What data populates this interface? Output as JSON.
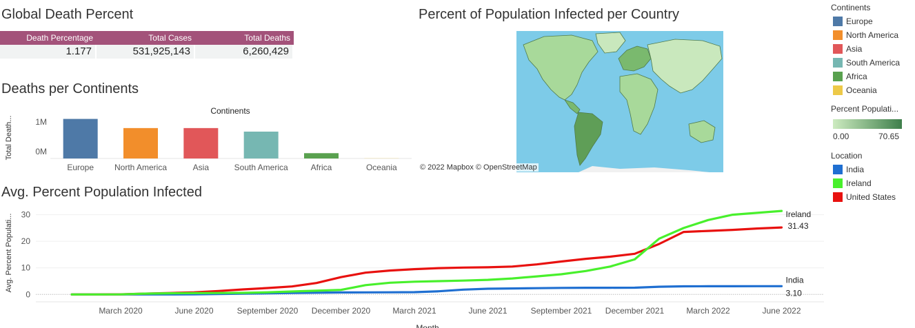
{
  "dashboard": {
    "global_title": "Global Death Percent",
    "deaths_title": "Deaths per Continents",
    "map_title": "Percent of Population Infected per Country",
    "line_title": "Avg. Percent Population Infected"
  },
  "kpi": {
    "headers": [
      "Death Percentage",
      "Total Cases",
      "Total Deaths"
    ],
    "values": [
      "1.177",
      "531,925,143",
      "6,260,429"
    ]
  },
  "map": {
    "credit": "© 2022 Mapbox  © OpenStreetMap",
    "ocean_color": "#7dcbe8",
    "land_colors": [
      "#a8d99a",
      "#7ab96e",
      "#5f9e57",
      "#c9e8bd"
    ]
  },
  "legend": {
    "continents_title": "Continents",
    "continents": [
      {
        "label": "Europe",
        "color": "#4e79a7"
      },
      {
        "label": "North America",
        "color": "#f28e2b"
      },
      {
        "label": "Asia",
        "color": "#e15759"
      },
      {
        "label": "South America",
        "color": "#76b7b2"
      },
      {
        "label": "Africa",
        "color": "#59a14f"
      },
      {
        "label": "Oceania",
        "color": "#edc948"
      }
    ],
    "gradient_title": "Percent Populati...",
    "gradient_min": "0.00",
    "gradient_max": "70.65",
    "location_title": "Location",
    "locations": [
      {
        "label": "India",
        "color": "#1f6fd1"
      },
      {
        "label": "Ireland",
        "color": "#48f02c"
      },
      {
        "label": "United States",
        "color": "#e8110f"
      }
    ]
  },
  "chart_data": [
    {
      "type": "bar",
      "title": "Deaths per Continents",
      "header": "Continents",
      "ylabel": "Total Death...",
      "yticks": [
        "0M",
        "1M"
      ],
      "ylim": [
        0,
        1400000
      ],
      "categories": [
        "Europe",
        "North America",
        "Asia",
        "South America",
        "Africa",
        "Oceania"
      ],
      "values": [
        1340000,
        1030000,
        1030000,
        910000,
        180000,
        5000
      ],
      "colors": [
        "#4e79a7",
        "#f28e2b",
        "#e15759",
        "#76b7b2",
        "#59a14f",
        "#edc948"
      ]
    },
    {
      "type": "line",
      "title": "Avg. Percent Population Infected",
      "ylabel": "Avg. Percent Populati...",
      "xlabel": "Month",
      "ylim": [
        -2,
        33
      ],
      "yticks": [
        0,
        10,
        20,
        30
      ],
      "xticks": [
        "March 2020",
        "June 2020",
        "September 2020",
        "December 2020",
        "March 2021",
        "June 2021",
        "September 2021",
        "December 2021",
        "March 2022",
        "June 2022"
      ],
      "x": [
        "Jan 2020",
        "Feb 2020",
        "Mar 2020",
        "Apr 2020",
        "May 2020",
        "Jun 2020",
        "Jul 2020",
        "Aug 2020",
        "Sep 2020",
        "Oct 2020",
        "Nov 2020",
        "Dec 2020",
        "Jan 2021",
        "Feb 2021",
        "Mar 2021",
        "Apr 2021",
        "May 2021",
        "Jun 2021",
        "Jul 2021",
        "Aug 2021",
        "Sep 2021",
        "Oct 2021",
        "Nov 2021",
        "Dec 2021",
        "Jan 2022",
        "Feb 2022",
        "Mar 2022",
        "Apr 2022",
        "May 2022",
        "Jun 2022"
      ],
      "series": [
        {
          "name": "India",
          "color": "#1f6fd1",
          "end_label": "India",
          "end_value": "3.10",
          "values": [
            0,
            0,
            0,
            0,
            0,
            0.05,
            0.15,
            0.3,
            0.4,
            0.55,
            0.65,
            0.75,
            0.78,
            0.8,
            0.85,
            1.2,
            1.8,
            2.15,
            2.25,
            2.35,
            2.45,
            2.5,
            2.5,
            2.55,
            2.9,
            3.05,
            3.08,
            3.09,
            3.1,
            3.1
          ]
        },
        {
          "name": "Ireland",
          "color": "#48f02c",
          "end_label": "Ireland",
          "end_value": "31.43",
          "values": [
            0,
            0,
            0.02,
            0.3,
            0.45,
            0.5,
            0.55,
            0.6,
            0.8,
            1.1,
            1.4,
            1.7,
            3.5,
            4.4,
            4.8,
            5.0,
            5.2,
            5.5,
            6.0,
            6.8,
            7.6,
            8.8,
            10.5,
            13.2,
            21.0,
            25.0,
            28.0,
            30.0,
            30.7,
            31.43
          ]
        },
        {
          "name": "United States",
          "color": "#e8110f",
          "end_label": "",
          "end_value": "",
          "values": [
            0,
            0,
            0.05,
            0.3,
            0.55,
            0.8,
            1.3,
            1.9,
            2.4,
            3.0,
            4.3,
            6.5,
            8.2,
            9.0,
            9.5,
            9.9,
            10.1,
            10.2,
            10.5,
            11.3,
            12.4,
            13.4,
            14.2,
            15.3,
            19.0,
            23.5,
            23.9,
            24.3,
            24.8,
            25.2
          ]
        }
      ]
    }
  ]
}
